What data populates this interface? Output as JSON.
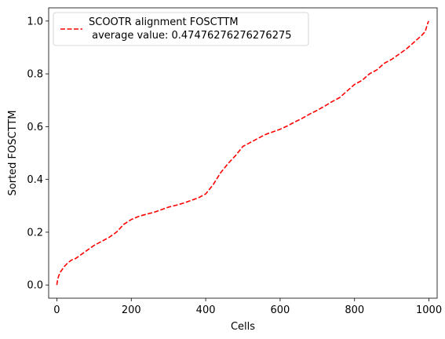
{
  "chart_data": {
    "type": "line",
    "title": "",
    "xlabel": "Cells",
    "ylabel": "Sorted FOSCTTM",
    "xlim": [
      -22,
      1022
    ],
    "ylim": [
      -0.05,
      1.05
    ],
    "xticks": [
      0,
      200,
      400,
      600,
      800,
      1000
    ],
    "xtick_labels": [
      "0",
      "200",
      "400",
      "600",
      "800",
      "1000"
    ],
    "yticks": [
      0.0,
      0.2,
      0.4,
      0.6,
      0.8,
      1.0
    ],
    "ytick_labels": [
      "0.0",
      "0.2",
      "0.4",
      "0.6",
      "0.8",
      "1.0"
    ],
    "grid": false,
    "legend_position": "top-left",
    "series": [
      {
        "name": "SCOOTR alignment FOSCTTM\n average value: 0.47476276276276275",
        "legend_lines": [
          "SCOOTR alignment FOSCTTM",
          " average value: 0.47476276276276275"
        ],
        "color": "#ff0000",
        "linestyle": "dashed",
        "x": [
          0,
          2,
          5,
          10,
          20,
          30,
          40,
          50,
          60,
          80,
          100,
          120,
          140,
          160,
          170,
          180,
          200,
          220,
          240,
          260,
          280,
          300,
          320,
          340,
          360,
          380,
          400,
          420,
          440,
          460,
          480,
          500,
          520,
          540,
          560,
          580,
          600,
          620,
          640,
          660,
          680,
          700,
          720,
          740,
          760,
          780,
          800,
          820,
          840,
          860,
          880,
          900,
          920,
          940,
          960,
          980,
          990,
          995,
          999
        ],
        "y": [
          0.0,
          0.02,
          0.035,
          0.05,
          0.07,
          0.085,
          0.095,
          0.1,
          0.11,
          0.13,
          0.15,
          0.165,
          0.18,
          0.2,
          0.215,
          0.23,
          0.248,
          0.26,
          0.268,
          0.275,
          0.285,
          0.295,
          0.302,
          0.31,
          0.32,
          0.33,
          0.345,
          0.38,
          0.425,
          0.46,
          0.49,
          0.525,
          0.54,
          0.555,
          0.57,
          0.58,
          0.59,
          0.603,
          0.618,
          0.632,
          0.648,
          0.662,
          0.678,
          0.695,
          0.71,
          0.735,
          0.76,
          0.775,
          0.8,
          0.815,
          0.84,
          0.855,
          0.875,
          0.895,
          0.92,
          0.945,
          0.96,
          0.985,
          1.0
        ]
      }
    ]
  }
}
